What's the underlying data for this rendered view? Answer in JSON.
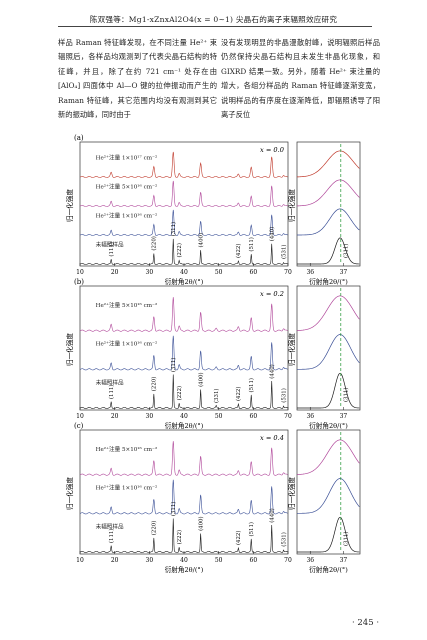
{
  "header": "陈双强等：Mg1-xZnxAl2O4(x = 0~1) 尖晶石的离子束辐照效应研究",
  "body_left": "样品 Raman 特征峰发现，在不同注量 He²⁺ 束辐照后，各样品均观测到了代表尖晶石结构的特征峰，并且，除了在约 721 cm⁻¹ 处存在由 [AlO₄] 四面体中 Al—O 键的拉伸振动而产生的 Raman 特征峰，其它范围内均没有观测到其它新的振动峰，同时由于",
  "body_right": "没有发现明显的非晶漫散射峰，说明辐照后样品仍然保持尖晶石结构且未发生非晶化现象，和 GIXRD 结果一致。另外，随着 He²⁺ 束注量的增大，各组分样品的 Raman 特征峰逐渐变宽，说明样品的有序度在逐渐降低，即辐照诱导了阳离子反位",
  "page_number": "· 245 ·",
  "figure": {
    "ylabel": "归一化强度",
    "xlabel": "衍射角2θ/(°)",
    "zoom_peak_label": "(311)",
    "colors": {
      "black": "#1a1a1a",
      "blue": "#3a4f96",
      "magenta": "#b0479a",
      "red": "#c0392b",
      "green": "#3aa04a"
    },
    "main_xticks": [
      "10",
      "20",
      "30",
      "40",
      "50",
      "60",
      "70"
    ],
    "zoom_xticks": [
      "36",
      "37"
    ],
    "panels": [
      {
        "letter": "(a)",
        "composition": "x = 0.0",
        "traces": [
          {
            "label": "He²⁺注量 1×10¹⁷ cm⁻²",
            "color": "red"
          },
          {
            "label": "He²⁺注量 5×10¹⁶ cm⁻²",
            "color": "magenta"
          },
          {
            "label": "He²⁺注量 1×10¹⁶ cm⁻²",
            "color": "blue"
          },
          {
            "label": "未辐照样品",
            "color": "black"
          }
        ],
        "peaks": [
          {
            "two_theta": 19,
            "label": "(111)"
          },
          {
            "two_theta": 31.3,
            "label": "(220)"
          },
          {
            "two_theta": 36.9,
            "label": "(311)"
          },
          {
            "two_theta": 38.6,
            "label": "(222)"
          },
          {
            "two_theta": 44.8,
            "label": "(400)"
          },
          {
            "two_theta": 55.7,
            "label": "(422)"
          },
          {
            "two_theta": 59.4,
            "label": "(511)"
          },
          {
            "two_theta": 65.3,
            "label": "(440)"
          },
          {
            "two_theta": 68.7,
            "label": "(531)"
          }
        ]
      },
      {
        "letter": "(b)",
        "composition": "x = 0.2",
        "traces": [
          {
            "label": "He²⁺注量 5×10¹⁶ cm⁻²",
            "color": "magenta"
          },
          {
            "label": "He²⁺注量 1×10¹⁶ cm⁻²",
            "color": "blue"
          },
          {
            "label": "未辐照样品",
            "color": "black"
          }
        ],
        "peaks": [
          {
            "two_theta": 19,
            "label": "(111)"
          },
          {
            "two_theta": 31.3,
            "label": "(220)"
          },
          {
            "two_theta": 36.9,
            "label": "(311)"
          },
          {
            "two_theta": 38.6,
            "label": "(222)"
          },
          {
            "two_theta": 44.8,
            "label": "(400)"
          },
          {
            "two_theta": 49.3,
            "label": "(331)"
          },
          {
            "two_theta": 55.7,
            "label": "(422)"
          },
          {
            "two_theta": 59.4,
            "label": "(511)"
          },
          {
            "two_theta": 65.3,
            "label": "(440)"
          },
          {
            "two_theta": 68.7,
            "label": "(531)"
          }
        ]
      },
      {
        "letter": "(c)",
        "composition": "x = 0.4",
        "traces": [
          {
            "label": "He²⁺注量 5×10¹⁶ cm⁻²",
            "color": "magenta"
          },
          {
            "label": "He²⁺注量 1×10¹⁶ cm⁻²",
            "color": "blue"
          },
          {
            "label": "未辐照样品",
            "color": "black"
          }
        ],
        "peaks": [
          {
            "two_theta": 19,
            "label": "(111)"
          },
          {
            "two_theta": 31.3,
            "label": "(220)"
          },
          {
            "two_theta": 36.9,
            "label": "(311)"
          },
          {
            "two_theta": 38.6,
            "label": "(222)"
          },
          {
            "two_theta": 44.8,
            "label": "(400)"
          },
          {
            "two_theta": 55.7,
            "label": "(422)"
          },
          {
            "two_theta": 59.4,
            "label": "(511)"
          },
          {
            "two_theta": 65.3,
            "label": "(440)"
          },
          {
            "two_theta": 68.7,
            "label": "(531)"
          }
        ]
      }
    ]
  }
}
